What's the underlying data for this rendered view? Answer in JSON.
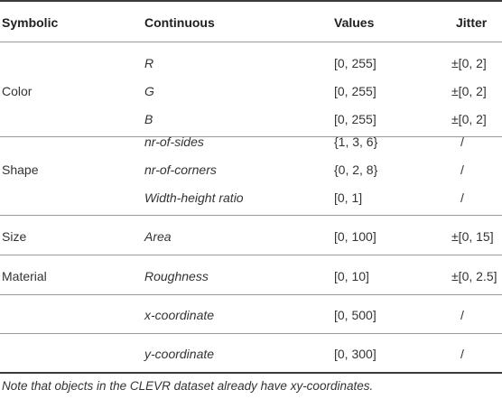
{
  "header": {
    "symbolic": "Symbolic",
    "continuous": "Continuous",
    "values": "Values",
    "jitter": "Jitter"
  },
  "groups": [
    {
      "symbolic": "Color",
      "rows": [
        {
          "continuous": "R",
          "values": "[0, 255]",
          "jitter": "±[0, 2]"
        },
        {
          "continuous": "G",
          "values": "[0, 255]",
          "jitter": "±[0, 2]"
        },
        {
          "continuous": "B",
          "values": "[0, 255]",
          "jitter": "±[0, 2]"
        }
      ]
    },
    {
      "symbolic": "Shape",
      "rows": [
        {
          "continuous": "nr-of-sides",
          "values": "{1, 3, 6}",
          "jitter": "/"
        },
        {
          "continuous": "nr-of-corners",
          "values": "{0, 2, 8}",
          "jitter": "/"
        },
        {
          "continuous": "Width-height ratio",
          "values": "[0, 1]",
          "jitter": "/"
        }
      ]
    },
    {
      "symbolic": "Size",
      "rows": [
        {
          "continuous": "Area",
          "values": "[0, 100]",
          "jitter": "±[0, 15]"
        }
      ]
    },
    {
      "symbolic": "Material",
      "rows": [
        {
          "continuous": "Roughness",
          "values": "[0, 10]",
          "jitter": "±[0, 2.5]"
        }
      ]
    },
    {
      "symbolic": "",
      "rows": [
        {
          "continuous": "x-coordinate",
          "values": "[0, 500]",
          "jitter": "/"
        }
      ]
    },
    {
      "symbolic": "",
      "rows": [
        {
          "continuous": "y-coordinate",
          "values": "[0, 300]",
          "jitter": "/"
        }
      ]
    }
  ],
  "note": "Note that objects in the CLEVR dataset already have xy-coordinates."
}
